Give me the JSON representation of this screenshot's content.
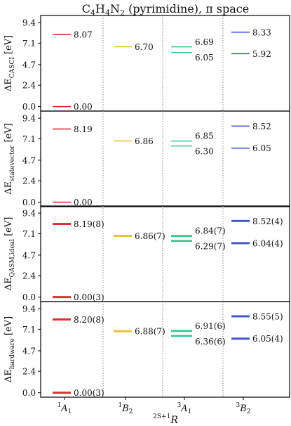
{
  "chart_data": {
    "type": "scatter",
    "title": "C4H4N2 (pyrimidine), π space",
    "title_parts": {
      "pre": "C",
      "s1": "4",
      "m1": "H",
      "s2": "4",
      "m2": "N",
      "s3": "2",
      "post": " (pyrimidine), π space"
    },
    "xlabel": "2S+1R",
    "xlabel_parts": {
      "sup": "2S+1",
      "main": "R"
    },
    "categories": [
      {
        "label": "1A1",
        "sup": "1",
        "main": "A",
        "sub": "1"
      },
      {
        "label": "1B2",
        "sup": "1",
        "main": "B",
        "sub": "2"
      },
      {
        "label": "3A1",
        "sup": "3",
        "main": "A",
        "sub": "1"
      },
      {
        "label": "3B2",
        "sup": "3",
        "main": "B",
        "sub": "2"
      }
    ],
    "yticks": [
      "0.0",
      "2.4",
      "4.7",
      "7.1",
      "9.4"
    ],
    "ylim": [
      -0.5,
      10.2
    ],
    "grid": false,
    "colors": {
      "1A1": "#d62728",
      "1B2": "#e8c02a",
      "3A1": "#3cc48e",
      "3B2": "#3a4fc8",
      "divider": "#8a8a8a"
    },
    "panels": [
      {
        "ylabel": "ΔE CASCI [eV]",
        "ylabel_parts": {
          "main": "ΔE",
          "sub": "CASCI",
          "unit": " [eV]"
        },
        "levels": [
          {
            "state": "1A1",
            "value": 0.0,
            "label": "0.00"
          },
          {
            "state": "1A1",
            "value": 8.07,
            "label": "8.07"
          },
          {
            "state": "1B2",
            "value": 6.7,
            "label": "6.70"
          },
          {
            "state": "3A1",
            "value": 6.05,
            "label": "6.05"
          },
          {
            "state": "3A1",
            "value": 6.69,
            "label": "6.69"
          },
          {
            "state": "3B2",
            "value": 5.92,
            "label": "5.92"
          },
          {
            "state": "3B2",
            "value": 8.33,
            "label": "8.33"
          }
        ]
      },
      {
        "ylabel": "ΔE statevector [eV]",
        "ylabel_parts": {
          "main": "ΔE",
          "sub": "statevector",
          "unit": " [eV]"
        },
        "levels": [
          {
            "state": "1A1",
            "value": 0.0,
            "label": "0.00"
          },
          {
            "state": "1A1",
            "value": 8.19,
            "label": "8.19"
          },
          {
            "state": "1B2",
            "value": 6.86,
            "label": "6.86"
          },
          {
            "state": "3A1",
            "value": 6.3,
            "label": "6.30"
          },
          {
            "state": "3A1",
            "value": 6.85,
            "label": "6.85"
          },
          {
            "state": "3B2",
            "value": 6.05,
            "label": "6.05"
          },
          {
            "state": "3B2",
            "value": 8.52,
            "label": "8.52"
          }
        ]
      },
      {
        "ylabel": "ΔE QASM,ideal [eV]",
        "ylabel_parts": {
          "main": "ΔE",
          "sub": "QASM,ideal",
          "unit": " [eV]"
        },
        "levels": [
          {
            "state": "1A1",
            "value": 0.0,
            "error": 0.03,
            "label": "0.00(3)"
          },
          {
            "state": "1A1",
            "value": 8.19,
            "error": 0.08,
            "label": "8.19(8)"
          },
          {
            "state": "1B2",
            "value": 6.86,
            "error": 0.07,
            "label": "6.86(7)"
          },
          {
            "state": "3A1",
            "value": 6.29,
            "error": 0.07,
            "label": "6.29(7)"
          },
          {
            "state": "3A1",
            "value": 6.84,
            "error": 0.07,
            "label": "6.84(7)"
          },
          {
            "state": "3B2",
            "value": 6.04,
            "error": 0.04,
            "label": "6.04(4)"
          },
          {
            "state": "3B2",
            "value": 8.52,
            "error": 0.04,
            "label": "8.52(4)"
          }
        ]
      },
      {
        "ylabel": "ΔE hardware [eV]",
        "ylabel_parts": {
          "main": "ΔE",
          "sub": "hardware",
          "unit": " [eV]"
        },
        "levels": [
          {
            "state": "1A1",
            "value": 0.0,
            "error": 0.03,
            "label": "0.00(3)"
          },
          {
            "state": "1A1",
            "value": 8.2,
            "error": 0.08,
            "label": "8.20(8)"
          },
          {
            "state": "1B2",
            "value": 6.88,
            "error": 0.07,
            "label": "6.88(7)"
          },
          {
            "state": "3A1",
            "value": 6.36,
            "error": 0.06,
            "label": "6.36(6)"
          },
          {
            "state": "3A1",
            "value": 6.91,
            "error": 0.06,
            "label": "6.91(6)"
          },
          {
            "state": "3B2",
            "value": 6.05,
            "error": 0.04,
            "label": "6.05(4)"
          },
          {
            "state": "3B2",
            "value": 8.55,
            "error": 0.05,
            "label": "8.55(5)"
          }
        ]
      }
    ]
  }
}
